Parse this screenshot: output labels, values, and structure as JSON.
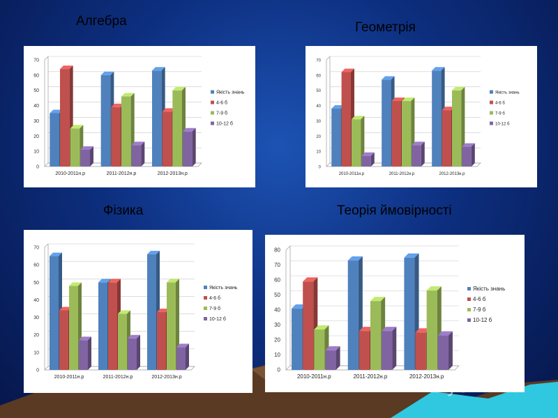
{
  "slide": {
    "titles": [
      "Алгебра",
      "Геометрія",
      "Фізика",
      "Теорія ймовірності"
    ],
    "watermark": "MyShared",
    "colors": {
      "background": "#0d2f80",
      "ground": "#5a3a22",
      "water": "#2fc8e0"
    }
  },
  "chart_data": [
    {
      "type": "bar",
      "title": "Алгебра",
      "categories": [
        "2010-2011н.р",
        "2011-2012н.р",
        "2012-2013н.р"
      ],
      "series": [
        {
          "name": "Якість знань",
          "color": "#4F81BD",
          "values": [
            35,
            60,
            63
          ]
        },
        {
          "name": "4-6 б",
          "color": "#C0504D",
          "values": [
            64,
            39,
            36
          ]
        },
        {
          "name": "7-9 б",
          "color": "#9BBB59",
          "values": [
            25,
            46,
            50
          ]
        },
        {
          "name": "10-12 б",
          "color": "#8064A2",
          "values": [
            11,
            14,
            23
          ]
        }
      ],
      "ylim": [
        0,
        70
      ],
      "yticks": [
        0,
        10,
        20,
        30,
        40,
        50,
        60,
        70
      ],
      "legend": "right",
      "grid": true
    },
    {
      "type": "bar",
      "title": "Геометрія",
      "categories": [
        "2010-2011н.р",
        "2011-2012н.р",
        "2012-2013н.р"
      ],
      "series": [
        {
          "name": "Якість знань",
          "color": "#4F81BD",
          "values": [
            38,
            57,
            63
          ]
        },
        {
          "name": "4-6 б",
          "color": "#C0504D",
          "values": [
            62,
            43,
            37
          ]
        },
        {
          "name": "7-9 б",
          "color": "#9BBB59",
          "values": [
            31,
            43,
            50
          ]
        },
        {
          "name": "10-12 б",
          "color": "#8064A2",
          "values": [
            7,
            14,
            13
          ]
        }
      ],
      "ylim": [
        0,
        70
      ],
      "yticks": [
        0,
        10,
        20,
        30,
        40,
        50,
        60,
        70
      ],
      "legend": "right",
      "grid": true
    },
    {
      "type": "bar",
      "title": "Фізика",
      "categories": [
        "2010-2011н.р",
        "2011-2012н.р",
        "2012-2013н.р"
      ],
      "series": [
        {
          "name": "Якість знань",
          "color": "#4F81BD",
          "values": [
            65,
            50,
            66
          ]
        },
        {
          "name": "4-6 б",
          "color": "#C0504D",
          "values": [
            34,
            50,
            33
          ]
        },
        {
          "name": "7-9 б",
          "color": "#9BBB59",
          "values": [
            48,
            32,
            50
          ]
        },
        {
          "name": "10-12 б",
          "color": "#8064A2",
          "values": [
            17,
            18,
            13
          ]
        }
      ],
      "ylim": [
        0,
        70
      ],
      "yticks": [
        0,
        10,
        20,
        30,
        40,
        50,
        60,
        70
      ],
      "legend": "right",
      "grid": true
    },
    {
      "type": "bar",
      "title": "Теорія ймовірності",
      "categories": [
        "2010-2011н.р",
        "2011-2012н.р",
        "2012-2013н.р"
      ],
      "series": [
        {
          "name": "Якість знань",
          "color": "#4F81BD",
          "values": [
            41,
            73,
            75
          ]
        },
        {
          "name": "4-6 б",
          "color": "#C0504D",
          "values": [
            59,
            26,
            25
          ]
        },
        {
          "name": "7-9 б",
          "color": "#9BBB59",
          "values": [
            27,
            46,
            53
          ]
        },
        {
          "name": "10-12 б",
          "color": "#8064A2",
          "values": [
            13,
            26,
            23
          ]
        }
      ],
      "ylim": [
        0,
        80
      ],
      "yticks": [
        0,
        10,
        20,
        30,
        40,
        50,
        60,
        70,
        80
      ],
      "legend": "right",
      "grid": true
    }
  ]
}
